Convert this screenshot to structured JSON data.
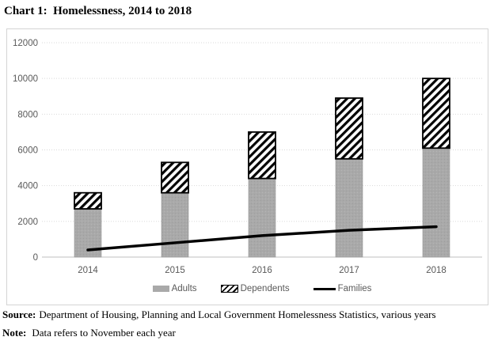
{
  "title": "Chart 1:  Homelessness, 2014 to 2018",
  "chart_data": {
    "type": "bar",
    "subtype": "stacked-bar-with-line",
    "title": "Chart 1:  Homelessness, 2014 to 2018",
    "categories": [
      "2014",
      "2015",
      "2016",
      "2017",
      "2018"
    ],
    "series": [
      {
        "name": "Adults",
        "type": "bar",
        "values": [
          2700,
          3600,
          4400,
          5500,
          6100
        ]
      },
      {
        "name": "Dependents",
        "type": "bar",
        "values": [
          900,
          1700,
          2600,
          3400,
          3900
        ]
      },
      {
        "name": "Families",
        "type": "line",
        "values": [
          400,
          800,
          1200,
          1500,
          1700
        ]
      }
    ],
    "stacked": true,
    "xlabel": "",
    "ylabel": "",
    "ylim": [
      0,
      12000
    ],
    "yticks": [
      0,
      2000,
      4000,
      6000,
      8000,
      10000,
      12000
    ],
    "grid": "horizontal-dotted",
    "legend_position": "bottom",
    "colors": {
      "adults_fill": "#a9a9a9",
      "adults_edge": "#969696",
      "dependents_fill": "#ffffff",
      "dependents_hatch": "#000000",
      "families_line": "#000000",
      "gridline": "#d9d9d9",
      "axis_line": "#bfbfbf",
      "tick_label": "#595959"
    }
  },
  "legend": {
    "items": [
      {
        "label": "Adults",
        "swatch": "gray-bar"
      },
      {
        "label": "Dependents",
        "swatch": "hatched-bar"
      },
      {
        "label": "Families",
        "swatch": "black-line"
      }
    ]
  },
  "footer": {
    "source_label": "Source:",
    "source_text": "Department of Housing, Planning and Local Government Homelessness Statistics, various years",
    "note_label": "Note:",
    "note_text": "Data refers to November each year"
  }
}
